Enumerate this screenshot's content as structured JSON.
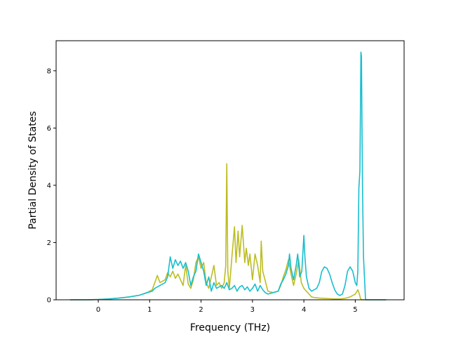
{
  "chart_data": {
    "type": "line",
    "xlabel": "Frequency (THz)",
    "ylabel": "Partial Density of States",
    "xlim": [
      -0.82,
      5.95
    ],
    "ylim": [
      0,
      9.05
    ],
    "xticks": [
      0,
      1,
      2,
      3,
      4,
      5
    ],
    "yticks": [
      0,
      2,
      4,
      6,
      8
    ],
    "grid": false,
    "series": [
      {
        "color": "#bcbd22",
        "x": [
          -0.55,
          -0.2,
          0.0,
          0.2,
          0.4,
          0.6,
          0.8,
          0.95,
          1.05,
          1.1,
          1.15,
          1.2,
          1.3,
          1.35,
          1.4,
          1.45,
          1.5,
          1.55,
          1.6,
          1.65,
          1.7,
          1.75,
          1.8,
          1.85,
          1.9,
          1.95,
          2.0,
          2.05,
          2.1,
          2.15,
          2.2,
          2.25,
          2.3,
          2.35,
          2.4,
          2.45,
          2.48,
          2.5,
          2.52,
          2.55,
          2.6,
          2.65,
          2.68,
          2.72,
          2.75,
          2.8,
          2.85,
          2.88,
          2.92,
          2.95,
          3.0,
          3.05,
          3.1,
          3.15,
          3.17,
          3.2,
          3.3,
          3.4,
          3.5,
          3.55,
          3.6,
          3.65,
          3.7,
          3.75,
          3.8,
          3.85,
          3.9,
          3.95,
          4.0,
          4.05,
          4.1,
          4.15,
          4.2,
          4.3,
          4.4,
          4.5,
          4.6,
          4.7,
          4.8,
          4.9,
          5.0,
          5.05,
          5.08,
          5.1,
          5.12,
          5.15,
          5.2,
          5.3,
          5.6
        ],
        "y": [
          0,
          0,
          0.01,
          0.03,
          0.06,
          0.1,
          0.16,
          0.25,
          0.35,
          0.6,
          0.85,
          0.6,
          0.7,
          0.95,
          0.8,
          1.0,
          0.75,
          0.9,
          0.7,
          0.5,
          1.2,
          0.55,
          0.4,
          0.7,
          1.3,
          1.5,
          1.1,
          1.3,
          0.6,
          0.4,
          0.8,
          1.2,
          0.5,
          0.6,
          0.4,
          0.6,
          1.2,
          4.75,
          1.0,
          0.4,
          1.5,
          2.55,
          1.3,
          2.4,
          1.5,
          2.6,
          1.3,
          1.8,
          1.2,
          1.6,
          0.7,
          1.6,
          1.2,
          0.6,
          2.05,
          1.0,
          0.3,
          0.25,
          0.3,
          0.5,
          0.8,
          1.05,
          1.4,
          0.9,
          0.5,
          0.9,
          1.4,
          0.6,
          0.4,
          0.3,
          0.2,
          0.1,
          0.08,
          0.06,
          0.05,
          0.04,
          0.03,
          0.03,
          0.05,
          0.1,
          0.2,
          0.35,
          0.2,
          0.05,
          0,
          0,
          0,
          0,
          0
        ]
      },
      {
        "color": "#17becf",
        "x": [
          -0.55,
          -0.2,
          0.0,
          0.2,
          0.4,
          0.6,
          0.8,
          0.95,
          1.05,
          1.1,
          1.15,
          1.2,
          1.3,
          1.35,
          1.4,
          1.45,
          1.5,
          1.55,
          1.6,
          1.65,
          1.7,
          1.75,
          1.8,
          1.85,
          1.9,
          1.95,
          2.0,
          2.05,
          2.1,
          2.15,
          2.2,
          2.25,
          2.3,
          2.35,
          2.4,
          2.45,
          2.5,
          2.55,
          2.6,
          2.65,
          2.7,
          2.75,
          2.8,
          2.85,
          2.9,
          2.95,
          3.0,
          3.05,
          3.1,
          3.15,
          3.2,
          3.25,
          3.3,
          3.4,
          3.5,
          3.55,
          3.6,
          3.65,
          3.7,
          3.72,
          3.75,
          3.8,
          3.85,
          3.88,
          3.92,
          3.96,
          4.0,
          4.02,
          4.05,
          4.1,
          4.15,
          4.2,
          4.25,
          4.3,
          4.35,
          4.4,
          4.45,
          4.5,
          4.55,
          4.6,
          4.65,
          4.7,
          4.75,
          4.8,
          4.85,
          4.9,
          4.95,
          5.0,
          5.03,
          5.05,
          5.07,
          5.09,
          5.1,
          5.11,
          5.12,
          5.14,
          5.16,
          5.2,
          5.3,
          5.6
        ],
        "y": [
          0,
          0,
          0.01,
          0.03,
          0.06,
          0.1,
          0.16,
          0.25,
          0.3,
          0.4,
          0.45,
          0.5,
          0.6,
          0.8,
          1.5,
          1.1,
          1.4,
          1.2,
          1.35,
          1.1,
          1.3,
          1.0,
          0.5,
          0.8,
          1.0,
          1.6,
          1.3,
          1.0,
          0.5,
          0.8,
          0.3,
          0.6,
          0.4,
          0.45,
          0.5,
          0.4,
          0.6,
          0.35,
          0.4,
          0.5,
          0.3,
          0.45,
          0.5,
          0.35,
          0.45,
          0.3,
          0.4,
          0.55,
          0.3,
          0.5,
          0.35,
          0.25,
          0.2,
          0.25,
          0.3,
          0.55,
          0.7,
          0.9,
          1.2,
          1.6,
          1.1,
          0.7,
          1.2,
          1.6,
          0.8,
          1.0,
          2.25,
          1.5,
          0.8,
          0.4,
          0.3,
          0.35,
          0.4,
          0.6,
          1.0,
          1.15,
          1.1,
          0.9,
          0.6,
          0.35,
          0.2,
          0.15,
          0.2,
          0.5,
          1.0,
          1.15,
          1.0,
          0.6,
          0.5,
          1.0,
          3.9,
          4.5,
          6.5,
          8.65,
          8.5,
          4.0,
          1.5,
          0,
          0,
          0
        ]
      }
    ]
  }
}
